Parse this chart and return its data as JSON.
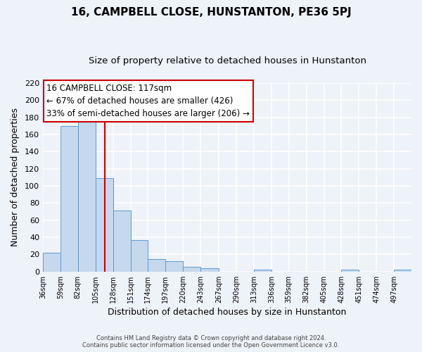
{
  "title": "16, CAMPBELL CLOSE, HUNSTANTON, PE36 5PJ",
  "subtitle": "Size of property relative to detached houses in Hunstanton",
  "xlabel": "Distribution of detached houses by size in Hunstanton",
  "ylabel": "Number of detached properties",
  "footer_line1": "Contains HM Land Registry data © Crown copyright and database right 2024.",
  "footer_line2": "Contains public sector information licensed under the Open Government Licence v3.0.",
  "bin_labels": [
    "36sqm",
    "59sqm",
    "82sqm",
    "105sqm",
    "128sqm",
    "151sqm",
    "174sqm",
    "197sqm",
    "220sqm",
    "243sqm",
    "267sqm",
    "290sqm",
    "313sqm",
    "336sqm",
    "359sqm",
    "382sqm",
    "405sqm",
    "428sqm",
    "451sqm",
    "474sqm",
    "497sqm"
  ],
  "bar_heights": [
    22,
    170,
    179,
    109,
    71,
    37,
    15,
    12,
    6,
    4,
    0,
    0,
    2,
    0,
    0,
    0,
    0,
    2,
    0,
    0,
    2
  ],
  "bar_color": "#c5d8ed",
  "bar_edge_color": "#5b9bd5",
  "property_line_x": 117,
  "bin_edges": [
    36,
    59,
    82,
    105,
    128,
    151,
    174,
    197,
    220,
    243,
    267,
    290,
    313,
    336,
    359,
    382,
    405,
    428,
    451,
    474,
    497,
    520
  ],
  "ylim": [
    0,
    220
  ],
  "yticks": [
    0,
    20,
    40,
    60,
    80,
    100,
    120,
    140,
    160,
    180,
    200,
    220
  ],
  "annotation_title": "16 CAMPBELL CLOSE: 117sqm",
  "annotation_line1": "← 67% of detached houses are smaller (426)",
  "annotation_line2": "33% of semi-detached houses are larger (206) →",
  "annotation_box_color": "#ffffff",
  "annotation_box_edge": "#cc0000",
  "red_line_color": "#cc0000",
  "background_color": "#eef2f9",
  "grid_color": "#ffffff",
  "title_fontsize": 11,
  "subtitle_fontsize": 9.5,
  "xlabel_fontsize": 9,
  "ylabel_fontsize": 9,
  "annotation_fontsize": 8.5
}
